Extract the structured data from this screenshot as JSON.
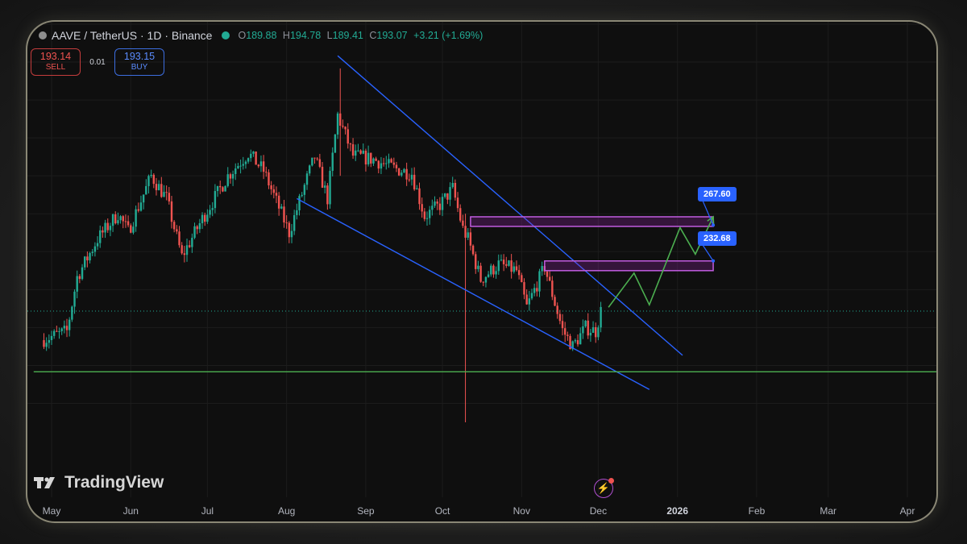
{
  "header": {
    "symbol": "AAVE / TetherUS · 1D · Binance",
    "open_label": "O",
    "open": "189.88",
    "high_label": "H",
    "high": "194.78",
    "low_label": "L",
    "low": "189.41",
    "close_label": "C",
    "close": "193.07",
    "change": "+3.21 (+1.69%)"
  },
  "trade": {
    "sell_price": "193.14",
    "sell_label": "SELL",
    "spread": "0.01",
    "buy_price": "193.15",
    "buy_label": "BUY"
  },
  "brand": "TradingView",
  "icons": {
    "logo": "tradingview-logo-icon",
    "bolt": "lightning-icon",
    "coin": "aave-coin-icon",
    "status": "market-open-dot-icon"
  },
  "colors": {
    "up": "#22ab94",
    "down": "#ef5350",
    "trendline": "#2962ff",
    "zone": "#c15ce0",
    "projection": "#4caf50",
    "support": "#4caf50",
    "tag": "#2962ff"
  },
  "chart_data": {
    "type": "candlestick",
    "x_axis_labels": [
      "May",
      "Jun",
      "Jul",
      "Aug",
      "Sep",
      "Oct",
      "Nov",
      "Dec",
      "2026",
      "Feb",
      "Mar",
      "Apr"
    ],
    "price_tags": [
      {
        "value": "267.60",
        "name": "upper target"
      },
      {
        "value": "232.68",
        "name": "lower target"
      }
    ],
    "series": [
      {
        "date": "2025-04-28",
        "close": 170
      },
      {
        "date": "2025-05-08",
        "close": 177
      },
      {
        "date": "2025-05-12",
        "close": 220
      },
      {
        "date": "2025-05-20",
        "close": 250
      },
      {
        "date": "2025-05-28",
        "close": 270
      },
      {
        "date": "2025-06-01",
        "close": 256
      },
      {
        "date": "2025-06-10",
        "close": 300
      },
      {
        "date": "2025-06-16",
        "close": 282
      },
      {
        "date": "2025-06-22",
        "close": 236
      },
      {
        "date": "2025-06-30",
        "close": 266
      },
      {
        "date": "2025-07-10",
        "close": 300
      },
      {
        "date": "2025-07-18",
        "close": 318
      },
      {
        "date": "2025-07-24",
        "close": 304
      },
      {
        "date": "2025-07-31",
        "close": 270
      },
      {
        "date": "2025-08-03",
        "close": 255
      },
      {
        "date": "2025-08-10",
        "close": 298
      },
      {
        "date": "2025-08-13",
        "close": 315
      },
      {
        "date": "2025-08-18",
        "close": 282
      },
      {
        "date": "2025-08-22",
        "close": 348
      },
      {
        "date": "2025-08-28",
        "close": 316
      },
      {
        "date": "2025-09-05",
        "close": 313
      },
      {
        "date": "2025-09-13",
        "close": 306
      },
      {
        "date": "2025-09-20",
        "close": 302
      },
      {
        "date": "2025-09-25",
        "close": 268
      },
      {
        "date": "2025-10-01",
        "close": 277
      },
      {
        "date": "2025-10-06",
        "close": 290
      },
      {
        "date": "2025-10-10",
        "close": 258
      },
      {
        "date": "2025-10-12",
        "close": 250
      },
      {
        "date": "2025-10-17",
        "close": 218
      },
      {
        "date": "2025-10-24",
        "close": 230
      },
      {
        "date": "2025-10-31",
        "close": 225
      },
      {
        "date": "2025-11-04",
        "close": 196
      },
      {
        "date": "2025-11-11",
        "close": 228
      },
      {
        "date": "2025-11-18",
        "close": 178
      },
      {
        "date": "2025-11-22",
        "close": 165
      },
      {
        "date": "2025-11-27",
        "close": 180
      },
      {
        "date": "2025-12-01",
        "close": 177
      },
      {
        "date": "2025-12-03",
        "close": 193
      }
    ],
    "wicks": [
      {
        "date": "2025-08-22",
        "high": 385,
        "low": 300
      },
      {
        "date": "2025-10-10",
        "high": 270,
        "low": 105
      }
    ],
    "lines": [
      {
        "name": "falling-wedge-upper",
        "points": [
          [
            "2025-08-21",
            395
          ],
          [
            "2026-01-03",
            158
          ]
        ]
      },
      {
        "name": "falling-wedge-lower",
        "points": [
          [
            "2025-08-05",
            282
          ],
          [
            "2025-12-21",
            131
          ]
        ]
      },
      {
        "name": "support",
        "points": [
          [
            "2025-04-24",
            145
          ],
          [
            "2026-04-29",
            145
          ]
        ]
      }
    ],
    "zones": [
      {
        "name": "upper-zone",
        "from": "2025-10-12",
        "to": "2026-01-15",
        "top": 267.6,
        "bottom": 260
      },
      {
        "name": "lower-zone",
        "from": "2025-11-10",
        "to": "2026-01-15",
        "top": 232.68,
        "bottom": 225
      }
    ],
    "projection": [
      [
        "2025-12-05",
        196
      ],
      [
        "2025-12-15",
        223
      ],
      [
        "2025-12-21",
        198
      ],
      [
        "2026-01-02",
        259
      ],
      [
        "2026-01-08",
        238
      ],
      [
        "2026-01-15",
        267.6
      ]
    ],
    "current_price": 193
  }
}
